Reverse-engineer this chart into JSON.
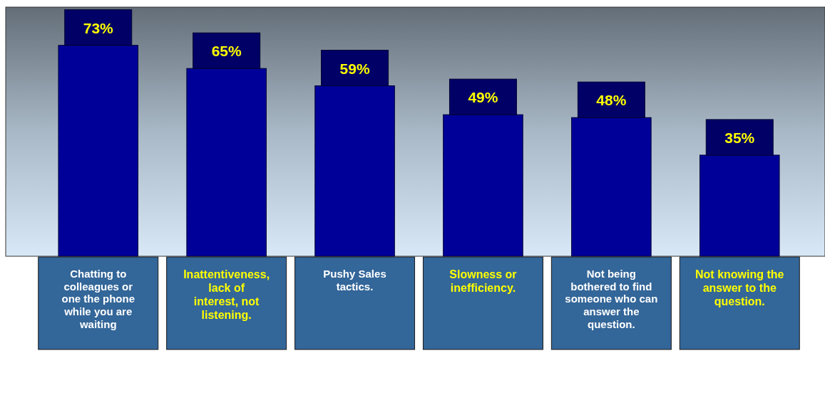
{
  "chart_data": {
    "type": "bar",
    "categories": [
      "Chatting to colleagues or one the phone while you are waiting",
      "Inattentiveness, lack of interest, not listening.",
      "Pushy Sales tactics.",
      "Slowness or inefficiency.",
      "Not being bothered to find someone who can answer the question.",
      "Not knowing the answer to the question."
    ],
    "values": [
      73,
      65,
      59,
      49,
      48,
      35
    ],
    "value_labels": [
      "73%",
      "65%",
      "59%",
      "49%",
      "48%",
      "35%"
    ],
    "color": "#000099"
  }
}
